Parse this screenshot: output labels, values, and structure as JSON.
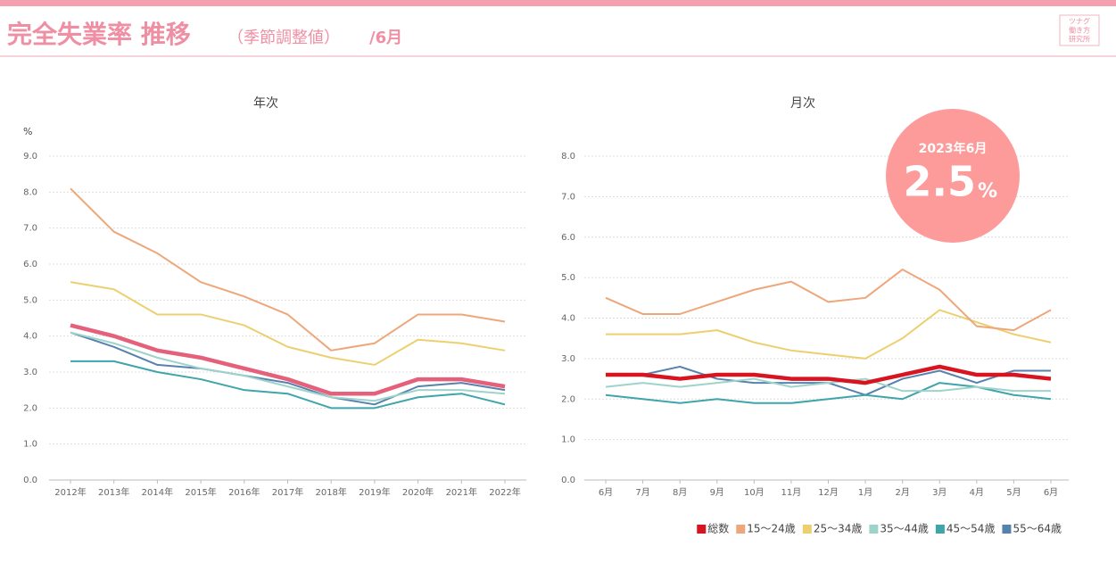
{
  "header": {
    "title": "完全失業率 推移",
    "subtitle": "（季節調整値）",
    "month": "/6月",
    "logo": [
      "ツナグ",
      "働き方",
      "研究所"
    ]
  },
  "badge": {
    "label": "2023年6月",
    "value": 2.5,
    "unit": "%"
  },
  "chart_data": [
    {
      "type": "line",
      "title": "年次",
      "y_label": "%",
      "categories": [
        "2012年",
        "2013年",
        "2014年",
        "2015年",
        "2016年",
        "2017年",
        "2018年",
        "2019年",
        "2020年",
        "2021年",
        "2022年"
      ],
      "ylim": [
        0,
        9
      ],
      "yticks": [
        {
          "value": 0,
          "label": "0.0"
        },
        {
          "value": 1,
          "label": "1.0"
        },
        {
          "value": 2,
          "label": "2.0"
        },
        {
          "value": 3,
          "label": "3.0"
        },
        {
          "value": 4,
          "label": "4.0"
        },
        {
          "value": 5,
          "label": "5.0"
        },
        {
          "value": 6,
          "label": "6.0"
        },
        {
          "value": 7,
          "label": "7.0"
        },
        {
          "value": 8,
          "label": "8.0"
        },
        {
          "value": 9,
          "label": "9.0"
        }
      ],
      "grid": true,
      "series": [
        {
          "name": "総数",
          "color": "#e5607a",
          "values": [
            4.3,
            4.0,
            3.6,
            3.4,
            3.1,
            2.8,
            2.4,
            2.4,
            2.8,
            2.8,
            2.6
          ]
        },
        {
          "name": "15～24歳",
          "color": "#eda77a",
          "values": [
            8.1,
            6.9,
            6.3,
            5.5,
            5.1,
            4.6,
            3.6,
            3.8,
            4.6,
            4.6,
            4.4
          ]
        },
        {
          "name": "25～34歳",
          "color": "#ecd070",
          "values": [
            5.5,
            5.3,
            4.6,
            4.6,
            4.3,
            3.7,
            3.4,
            3.2,
            3.9,
            3.8,
            3.6
          ]
        },
        {
          "name": "35～44歳",
          "color": "#9ed3cb",
          "values": [
            4.1,
            3.8,
            3.4,
            3.1,
            2.9,
            2.6,
            2.3,
            2.2,
            2.5,
            2.5,
            2.4
          ]
        },
        {
          "name": "45～54歳",
          "color": "#3fa5aa",
          "values": [
            3.3,
            3.3,
            3.0,
            2.8,
            2.5,
            2.4,
            2.0,
            2.0,
            2.3,
            2.4,
            2.1
          ]
        },
        {
          "name": "55～64歳",
          "color": "#5682ad",
          "values": [
            4.1,
            3.7,
            3.2,
            3.1,
            2.9,
            2.7,
            2.3,
            2.1,
            2.6,
            2.7,
            2.5
          ]
        }
      ]
    },
    {
      "type": "line",
      "title": "月次",
      "categories": [
        "6月",
        "7月",
        "8月",
        "9月",
        "10月",
        "11月",
        "12月",
        "1月",
        "2月",
        "3月",
        "4月",
        "5月",
        "6月"
      ],
      "ylim": [
        0,
        8
      ],
      "yticks": [
        {
          "value": 0,
          "label": "0.0"
        },
        {
          "value": 1,
          "label": "1.0"
        },
        {
          "value": 2,
          "label": "2.0"
        },
        {
          "value": 3,
          "label": "3.0"
        },
        {
          "value": 4,
          "label": "4.0"
        },
        {
          "value": 5,
          "label": "5.0"
        },
        {
          "value": 6,
          "label": "6.0"
        },
        {
          "value": 7,
          "label": "7.0"
        },
        {
          "value": 8,
          "label": "8.0"
        }
      ],
      "grid": true,
      "legend": "bottom-right",
      "series": [
        {
          "name": "総数",
          "color": "#d7141f",
          "values": [
            2.6,
            2.6,
            2.5,
            2.6,
            2.6,
            2.5,
            2.5,
            2.4,
            2.6,
            2.8,
            2.6,
            2.6,
            2.5
          ]
        },
        {
          "name": "15～24歳",
          "color": "#eda77a",
          "values": [
            4.5,
            4.1,
            4.1,
            4.4,
            4.7,
            4.9,
            4.4,
            4.5,
            5.2,
            4.7,
            3.8,
            3.7,
            4.2
          ]
        },
        {
          "name": "25～34歳",
          "color": "#ecd070",
          "values": [
            3.6,
            3.6,
            3.6,
            3.7,
            3.4,
            3.2,
            3.1,
            3.0,
            3.5,
            4.2,
            3.9,
            3.6,
            3.4
          ]
        },
        {
          "name": "35～44歳",
          "color": "#9ed3cb",
          "values": [
            2.3,
            2.4,
            2.3,
            2.4,
            2.5,
            2.3,
            2.4,
            2.5,
            2.2,
            2.2,
            2.3,
            2.2,
            2.2
          ]
        },
        {
          "name": "45～54歳",
          "color": "#3fa5aa",
          "values": [
            2.1,
            2.0,
            1.9,
            2.0,
            1.9,
            1.9,
            2.0,
            2.1,
            2.0,
            2.4,
            2.3,
            2.1,
            2.0
          ]
        },
        {
          "name": "55～64歳",
          "color": "#5682ad",
          "values": [
            2.6,
            2.6,
            2.8,
            2.5,
            2.4,
            2.4,
            2.4,
            2.1,
            2.5,
            2.7,
            2.4,
            2.7,
            2.7
          ]
        }
      ]
    }
  ]
}
